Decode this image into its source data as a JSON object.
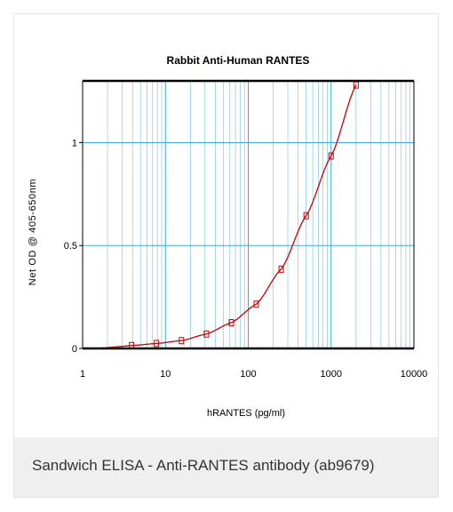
{
  "caption": "Sandwich ELISA - Anti-RANTES antibody (ab9679)",
  "colors": {
    "grid": "#3ea7d8",
    "curve": "#cc0000",
    "marker": "#cc0000",
    "frame": "#000000",
    "caption_bg": "#efefef"
  },
  "chart_data": {
    "type": "line",
    "title": "Rabbit Anti-Human RANTES",
    "xlabel": "hRANTES (pg/ml)",
    "ylabel": "Net OD @ 405-650nm",
    "xscale": "log",
    "xlim": [
      1,
      10000
    ],
    "ylim": [
      0,
      1.3
    ],
    "x_ticks": [
      1,
      10,
      100,
      1000,
      10000
    ],
    "x_tick_labels": [
      "1",
      "10",
      "100",
      "1000",
      "10000"
    ],
    "y_ticks": [
      0,
      0.5,
      1
    ],
    "y_tick_labels": [
      "0",
      "0.5",
      "1"
    ],
    "grid": true,
    "series": [
      {
        "x": [
          3.9,
          7.8,
          15.6,
          31.25,
          62.5,
          125,
          250,
          500,
          1000,
          2000
        ],
        "y": [
          0.014,
          0.024,
          0.038,
          0.07,
          0.125,
          0.215,
          0.385,
          0.645,
          0.935,
          1.28
        ],
        "marker": "square",
        "fit": "curve"
      }
    ]
  }
}
